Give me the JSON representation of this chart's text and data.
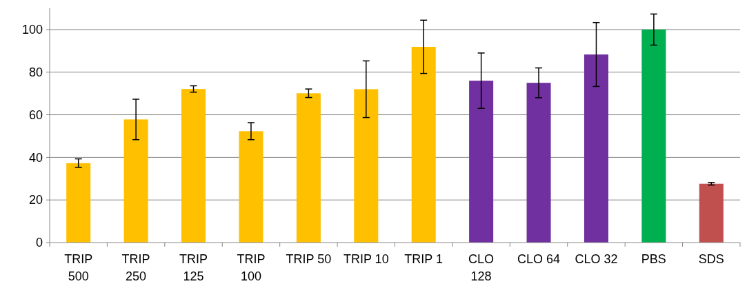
{
  "chart_data": {
    "type": "bar",
    "categories": [
      "TRIP 500",
      "TRIP 250",
      "TRIP 125",
      "TRIP 100",
      "TRIP 50",
      "TRIP 10",
      "TRIP 1",
      "CLO 128",
      "CLO 64",
      "CLO 32",
      "PBS",
      "SDS"
    ],
    "values": [
      37.3,
      57.8,
      72.1,
      52.3,
      70.1,
      72,
      91.9,
      76,
      75,
      88.3,
      100,
      27.6
    ],
    "colors": [
      "#ffc000",
      "#ffc000",
      "#ffc000",
      "#ffc000",
      "#ffc000",
      "#ffc000",
      "#ffc000",
      "#7030a0",
      "#7030a0",
      "#7030a0",
      "#00b050",
      "#c0504d"
    ],
    "errors": [
      2,
      9.5,
      1.5,
      4,
      2,
      13.3,
      12.5,
      13,
      7,
      15,
      7.3,
      0.6
    ],
    "ylim": [
      0,
      110
    ],
    "yticks": [
      0,
      20,
      40,
      60,
      80,
      100
    ],
    "grid": "y"
  }
}
